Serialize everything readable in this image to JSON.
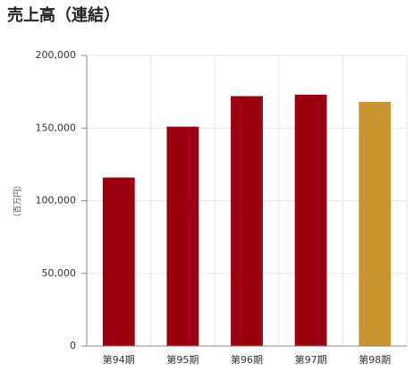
{
  "chart_data": {
    "type": "bar",
    "title": "売上高（連結）",
    "y_label": "（百万円）",
    "categories": [
      "第94期",
      "第95期",
      "第96期",
      "第97期",
      "第98期"
    ],
    "values": [
      116000,
      151000,
      172000,
      173000,
      168000
    ],
    "colors": [
      "#9b0010",
      "#9b0010",
      "#9b0010",
      "#9b0010",
      "#c8952f"
    ],
    "ylim": [
      0,
      200000
    ],
    "yticks": [
      0,
      {
        "value": 50000,
        "label": "50,000"
      },
      {
        "value": 100000,
        "label": "100,000"
      },
      {
        "value": 150000,
        "label": "150,000"
      },
      {
        "value": 200000,
        "label": "200,000"
      }
    ],
    "grid": true
  }
}
